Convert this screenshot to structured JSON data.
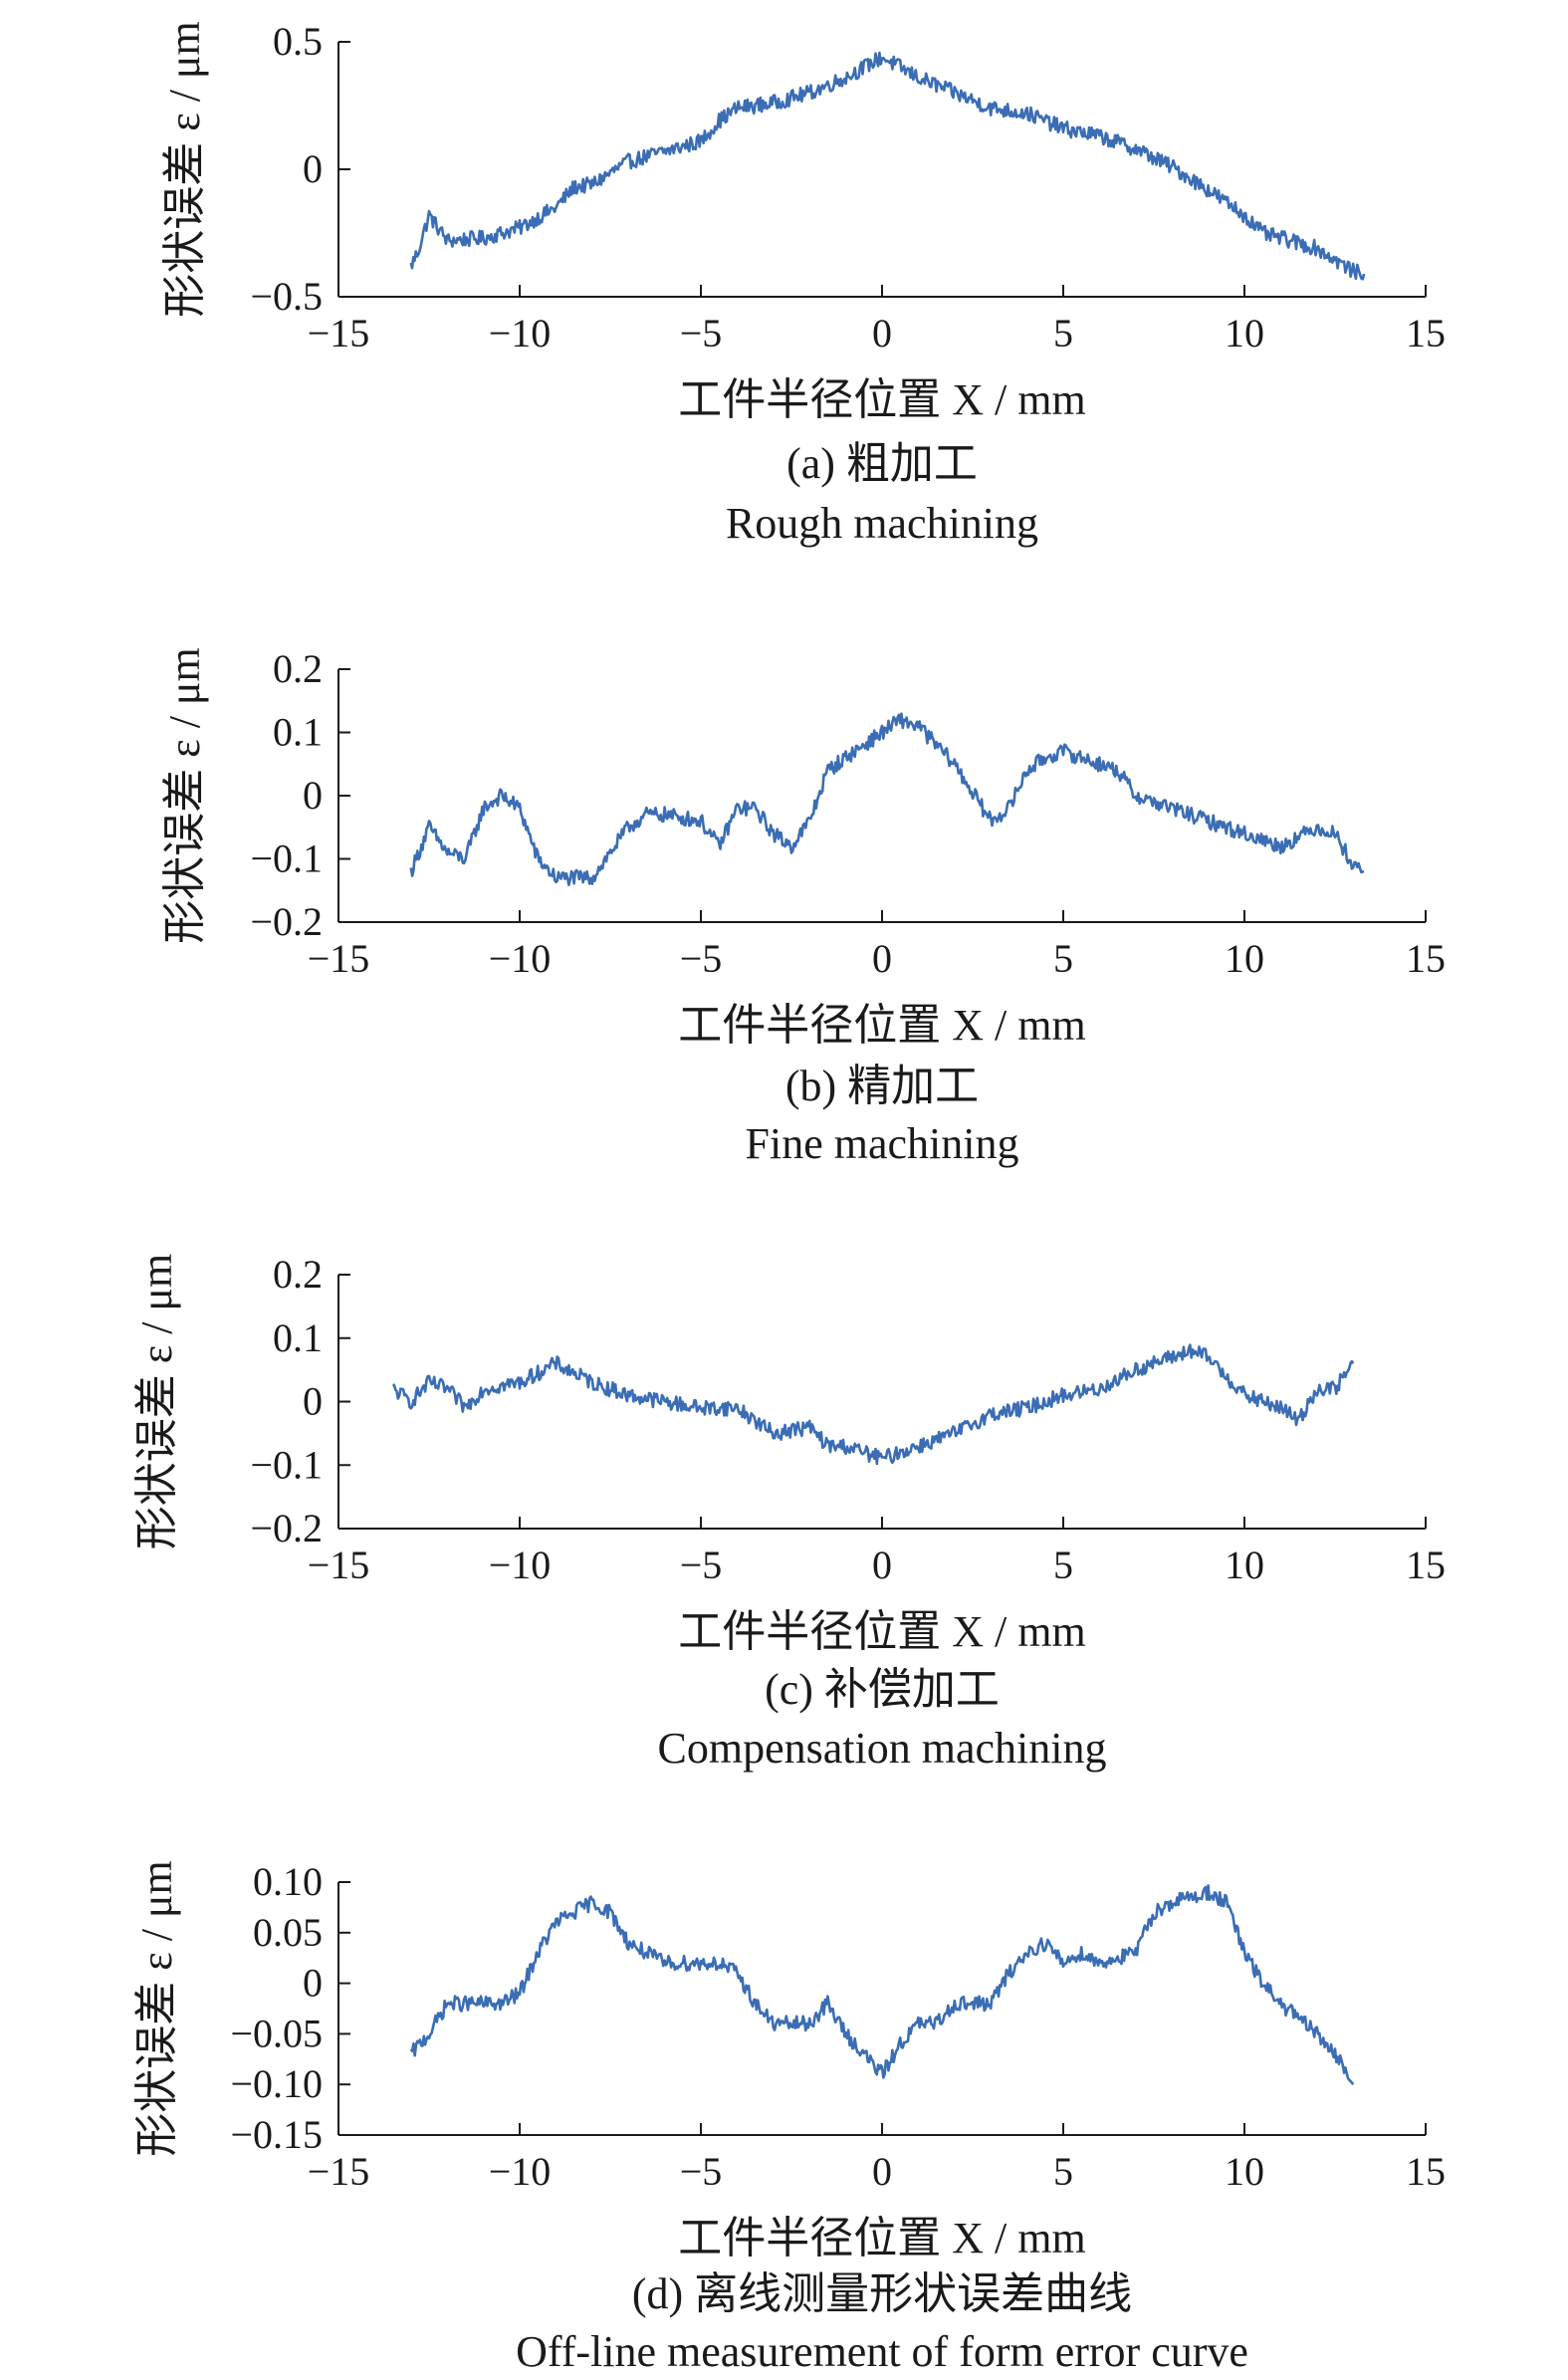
{
  "chart_data": [
    {
      "type": "line",
      "panel": "a",
      "caption_cn": "(a) 粗加工",
      "caption_en": "Rough machining",
      "xlabel": "工件半径位置 X / mm",
      "ylabel": "形状误差 ε / μm",
      "xlim": [
        -15,
        15
      ],
      "ylim": [
        -0.5,
        0.5
      ],
      "xticks": [
        -15,
        -10,
        -5,
        0,
        5,
        10,
        15
      ],
      "xtick_labels": [
        "−15",
        "−10",
        "−5",
        "0",
        "5",
        "10",
        "15"
      ],
      "yticks": [
        -0.5,
        0,
        0.5
      ],
      "ytick_labels": [
        "−0.5",
        "0",
        "0.5"
      ],
      "line_color": "#3a6db5",
      "x": [
        -13.0,
        -12.8,
        -12.5,
        -12.0,
        -11.0,
        -10.0,
        -9.5,
        -9.0,
        -8.5,
        -8.0,
        -7.0,
        -6.0,
        -5.0,
        -4.5,
        -4.0,
        -3.5,
        -3.0,
        -2.0,
        -1.0,
        0.0,
        0.5,
        1.0,
        2.0,
        3.0,
        4.0,
        5.0,
        6.0,
        7.0,
        8.0,
        9.0,
        10.0,
        10.5,
        11.0,
        12.0,
        13.0,
        13.3
      ],
      "y": [
        -0.38,
        -0.32,
        -0.18,
        -0.28,
        -0.27,
        -0.23,
        -0.19,
        -0.15,
        -0.07,
        -0.06,
        0.03,
        0.07,
        0.11,
        0.19,
        0.24,
        0.25,
        0.26,
        0.3,
        0.36,
        0.44,
        0.4,
        0.36,
        0.3,
        0.24,
        0.22,
        0.16,
        0.13,
        0.08,
        0.01,
        -0.08,
        -0.18,
        -0.25,
        -0.27,
        -0.31,
        -0.4,
        -0.41
      ]
    },
    {
      "type": "line",
      "panel": "b",
      "caption_cn": "(b) 精加工",
      "caption_en": "Fine machining",
      "xlabel": "工件半径位置 X / mm",
      "ylabel": "形状误差 ε / μm",
      "xlim": [
        -15,
        15
      ],
      "ylim": [
        -0.2,
        0.2
      ],
      "xticks": [
        -15,
        -10,
        -5,
        0,
        5,
        10,
        15
      ],
      "xtick_labels": [
        "−15",
        "−10",
        "−5",
        "0",
        "5",
        "10",
        "15"
      ],
      "yticks": [
        -0.2,
        -0.1,
        0,
        0.1,
        0.2
      ],
      "ytick_labels": [
        "−0.2",
        "−0.1",
        "0",
        "0.1",
        "0.2"
      ],
      "line_color": "#3a6db5",
      "x": [
        -13.0,
        -12.5,
        -12.0,
        -11.5,
        -11.0,
        -10.5,
        -10.0,
        -9.5,
        -9.0,
        -8.0,
        -7.0,
        -6.5,
        -6.0,
        -5.0,
        -4.5,
        -4.0,
        -3.5,
        -3.0,
        -2.5,
        -2.0,
        -1.5,
        -1.0,
        0.0,
        0.5,
        1.0,
        1.5,
        2.0,
        3.0,
        3.5,
        4.0,
        4.5,
        5.0,
        6.0,
        6.5,
        7.0,
        8.0,
        9.0,
        10.0,
        11.0,
        12.0,
        12.5,
        13.0,
        13.3
      ],
      "y": [
        -0.12,
        -0.05,
        -0.09,
        -0.1,
        -0.02,
        0.0,
        -0.02,
        -0.1,
        -0.13,
        -0.13,
        -0.05,
        -0.03,
        -0.03,
        -0.04,
        -0.08,
        -0.02,
        -0.02,
        -0.06,
        -0.08,
        -0.04,
        0.04,
        0.06,
        0.1,
        0.12,
        0.11,
        0.08,
        0.05,
        -0.04,
        -0.02,
        0.04,
        0.06,
        0.07,
        0.05,
        0.04,
        0.0,
        -0.02,
        -0.04,
        -0.06,
        -0.08,
        -0.05,
        -0.06,
        -0.11,
        -0.12
      ]
    },
    {
      "type": "line",
      "panel": "c",
      "caption_cn": "(c) 补偿加工",
      "caption_en": "Compensation machining",
      "xlabel": "工件半径位置 X / mm",
      "ylabel": "形状误差 ε / μm",
      "xlim": [
        -15,
        15
      ],
      "ylim": [
        -0.2,
        0.2
      ],
      "xticks": [
        -15,
        -10,
        -5,
        0,
        5,
        10,
        15
      ],
      "xtick_labels": [
        "−15",
        "−10",
        "−5",
        "0",
        "5",
        "10",
        "15"
      ],
      "yticks": [
        -0.2,
        -0.1,
        0,
        0.1,
        0.2
      ],
      "ytick_labels": [
        "−0.2",
        "−0.1",
        "0",
        "0.1",
        "0.2"
      ],
      "line_color": "#3a6db5",
      "x": [
        -13.5,
        -13.0,
        -12.5,
        -12.0,
        -11.5,
        -11.0,
        -10.0,
        -9.0,
        -8.0,
        -7.0,
        -6.0,
        -5.0,
        -4.0,
        -3.5,
        -3.0,
        -2.0,
        -1.5,
        -1.0,
        0.0,
        1.0,
        2.0,
        3.0,
        4.0,
        5.0,
        6.0,
        7.0,
        8.0,
        8.5,
        9.0,
        9.5,
        10.0,
        10.5,
        11.0,
        11.5,
        12.0,
        12.5,
        13.0
      ],
      "y": [
        0.02,
        0.0,
        0.03,
        0.02,
        -0.01,
        0.02,
        0.03,
        0.06,
        0.03,
        0.01,
        0.0,
        -0.01,
        -0.01,
        -0.03,
        -0.05,
        -0.04,
        -0.07,
        -0.07,
        -0.09,
        -0.07,
        -0.05,
        -0.02,
        -0.01,
        0.01,
        0.02,
        0.05,
        0.07,
        0.08,
        0.07,
        0.04,
        0.01,
        0.0,
        -0.01,
        -0.03,
        0.02,
        0.02,
        0.06
      ]
    },
    {
      "type": "line",
      "panel": "d",
      "caption_cn": "(d) 离线测量形状误差曲线",
      "caption_en": "Off-line measurement of form error curve",
      "xlabel": "工件半径位置 X / mm",
      "ylabel": "形状误差 ε / μm",
      "xlim": [
        -15,
        15
      ],
      "ylim": [
        -0.15,
        0.1
      ],
      "xticks": [
        -15,
        -10,
        -5,
        0,
        5,
        10,
        15
      ],
      "xtick_labels": [
        "−15",
        "−10",
        "−5",
        "0",
        "5",
        "10",
        "15"
      ],
      "yticks": [
        -0.15,
        -0.1,
        -0.05,
        0,
        0.05,
        0.1
      ],
      "ytick_labels": [
        "−0.15",
        "−0.10",
        "−0.05",
        "0",
        "0.05",
        "0.10"
      ],
      "line_color": "#3a6db5",
      "x": [
        -13.0,
        -12.5,
        -12.0,
        -11.0,
        -10.5,
        -10.0,
        -9.5,
        -9.0,
        -8.5,
        -8.0,
        -7.5,
        -7.0,
        -6.5,
        -6.0,
        -5.0,
        -4.5,
        -4.0,
        -3.5,
        -3.0,
        -2.0,
        -1.5,
        -1.0,
        -0.5,
        0.0,
        0.5,
        1.0,
        1.5,
        2.0,
        3.0,
        3.5,
        4.0,
        4.5,
        5.0,
        5.5,
        6.0,
        7.0,
        7.5,
        8.0,
        9.0,
        9.5,
        10.0,
        10.5,
        11.0,
        12.0,
        12.5,
        13.0
      ],
      "y": [
        -0.07,
        -0.05,
        -0.02,
        -0.02,
        -0.02,
        -0.01,
        0.03,
        0.06,
        0.07,
        0.08,
        0.07,
        0.04,
        0.03,
        0.02,
        0.02,
        0.02,
        0.01,
        -0.02,
        -0.04,
        -0.04,
        -0.02,
        -0.05,
        -0.07,
        -0.09,
        -0.06,
        -0.04,
        -0.04,
        -0.02,
        -0.02,
        0.01,
        0.03,
        0.04,
        0.02,
        0.03,
        0.02,
        0.03,
        0.07,
        0.08,
        0.09,
        0.08,
        0.03,
        0.0,
        -0.02,
        -0.05,
        -0.07,
        -0.1
      ]
    }
  ]
}
